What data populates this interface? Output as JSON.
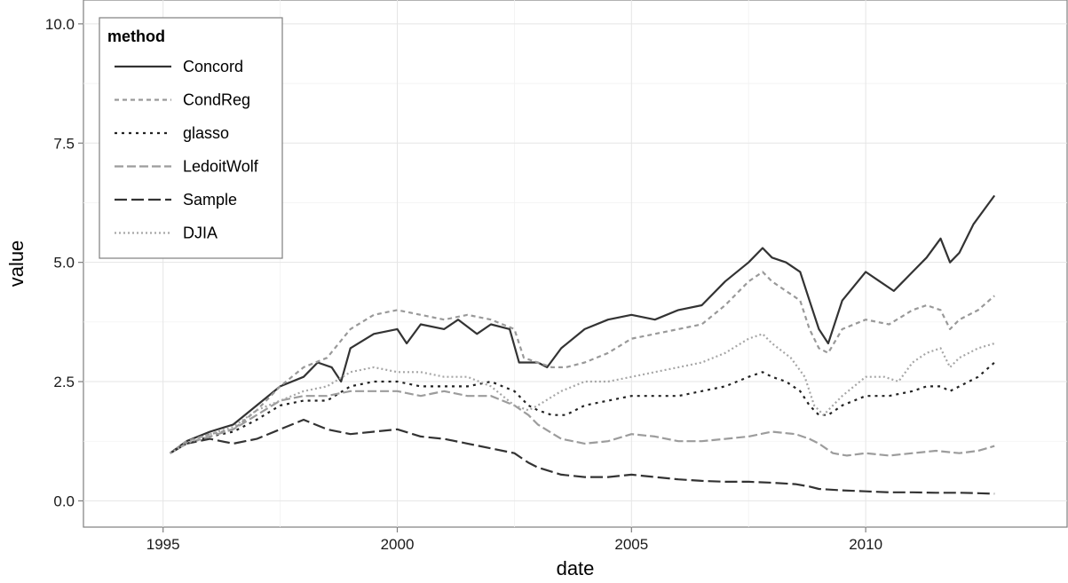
{
  "chart_data": {
    "type": "line",
    "xlabel": "date",
    "ylabel": "value",
    "xlim": [
      1993.3,
      2014.3
    ],
    "ylim": [
      -0.55,
      10.5
    ],
    "x_ticks": [
      1995,
      2000,
      2005,
      2010
    ],
    "x_tick_labels": [
      "1995",
      "2000",
      "2005",
      "2010"
    ],
    "y_ticks": [
      0.0,
      2.5,
      5.0,
      7.5,
      10.0
    ],
    "y_tick_labels": [
      "0.0",
      "2.5",
      "5.0",
      "7.5",
      "10.0"
    ],
    "grid": true,
    "legend": {
      "title": "method",
      "position": "top-left"
    },
    "series": [
      {
        "name": "Concord",
        "color": "#333333",
        "dash": "solid",
        "x": [
          1995.15,
          1995.5,
          1996.0,
          1996.5,
          1997.0,
          1997.5,
          1998.0,
          1998.3,
          1998.6,
          1998.8,
          1999.0,
          1999.5,
          2000.0,
          2000.2,
          2000.5,
          2001.0,
          2001.3,
          2001.7,
          2002.0,
          2002.4,
          2002.6,
          2002.8,
          2003.0,
          2003.2,
          2003.5,
          2004.0,
          2004.5,
          2005.0,
          2005.5,
          2006.0,
          2006.5,
          2007.0,
          2007.5,
          2007.8,
          2008.0,
          2008.3,
          2008.6,
          2008.8,
          2009.0,
          2009.2,
          2009.5,
          2010.0,
          2010.3,
          2010.6,
          2011.0,
          2011.3,
          2011.6,
          2011.8,
          2012.0,
          2012.3,
          2012.6,
          2012.75
        ],
        "y": [
          1.0,
          1.25,
          1.45,
          1.6,
          2.0,
          2.4,
          2.6,
          2.9,
          2.8,
          2.5,
          3.2,
          3.5,
          3.6,
          3.3,
          3.7,
          3.6,
          3.8,
          3.5,
          3.7,
          3.6,
          2.9,
          2.9,
          2.9,
          2.8,
          3.2,
          3.6,
          3.8,
          3.9,
          3.8,
          4.0,
          4.1,
          4.6,
          5.0,
          5.3,
          5.1,
          5.0,
          4.8,
          4.2,
          3.6,
          3.3,
          4.2,
          4.8,
          4.6,
          4.4,
          4.8,
          5.1,
          5.5,
          5.0,
          5.2,
          5.8,
          6.2,
          6.4
        ]
      },
      {
        "name": "CondReg",
        "color": "#999999",
        "dash": "5,4",
        "x": [
          1995.15,
          1995.5,
          1996.0,
          1996.5,
          1997.0,
          1997.5,
          1998.0,
          1998.5,
          1999.0,
          1999.5,
          2000.0,
          2000.5,
          2001.0,
          2001.5,
          2002.0,
          2002.5,
          2002.7,
          2003.0,
          2003.3,
          2003.6,
          2004.0,
          2004.5,
          2005.0,
          2005.5,
          2006.0,
          2006.5,
          2007.0,
          2007.5,
          2007.8,
          2008.0,
          2008.3,
          2008.6,
          2008.8,
          2009.0,
          2009.2,
          2009.5,
          2010.0,
          2010.5,
          2011.0,
          2011.3,
          2011.6,
          2011.8,
          2012.0,
          2012.4,
          2012.75
        ],
        "y": [
          1.0,
          1.25,
          1.4,
          1.5,
          1.9,
          2.4,
          2.8,
          3.0,
          3.6,
          3.9,
          4.0,
          3.9,
          3.8,
          3.9,
          3.8,
          3.6,
          3.0,
          2.9,
          2.8,
          2.8,
          2.9,
          3.1,
          3.4,
          3.5,
          3.6,
          3.7,
          4.1,
          4.6,
          4.8,
          4.6,
          4.4,
          4.2,
          3.6,
          3.2,
          3.1,
          3.6,
          3.8,
          3.7,
          4.0,
          4.1,
          4.0,
          3.6,
          3.8,
          4.0,
          4.3
        ]
      },
      {
        "name": "glasso",
        "color": "#222222",
        "dash": "3,5",
        "x": [
          1995.15,
          1995.5,
          1996.0,
          1996.5,
          1997.0,
          1997.5,
          1998.0,
          1998.5,
          1999.0,
          1999.5,
          2000.0,
          2000.5,
          2001.0,
          2001.5,
          2002.0,
          2002.5,
          2002.8,
          2003.0,
          2003.3,
          2003.6,
          2004.0,
          2004.5,
          2005.0,
          2005.5,
          2006.0,
          2006.5,
          2007.0,
          2007.5,
          2007.8,
          2008.0,
          2008.3,
          2008.6,
          2008.8,
          2009.0,
          2009.2,
          2009.5,
          2010.0,
          2010.5,
          2011.0,
          2011.3,
          2011.6,
          2011.8,
          2012.0,
          2012.4,
          2012.75
        ],
        "y": [
          1.0,
          1.2,
          1.35,
          1.45,
          1.7,
          2.0,
          2.1,
          2.1,
          2.4,
          2.5,
          2.5,
          2.4,
          2.4,
          2.4,
          2.5,
          2.3,
          2.0,
          1.9,
          1.8,
          1.8,
          2.0,
          2.1,
          2.2,
          2.2,
          2.2,
          2.3,
          2.4,
          2.6,
          2.7,
          2.6,
          2.5,
          2.3,
          2.0,
          1.8,
          1.8,
          2.0,
          2.2,
          2.2,
          2.3,
          2.4,
          2.4,
          2.3,
          2.4,
          2.6,
          2.9
        ]
      },
      {
        "name": "LedoitWolf",
        "color": "#9c9c9c",
        "dash": "10,4",
        "x": [
          1995.15,
          1995.5,
          1996.0,
          1996.5,
          1997.0,
          1997.5,
          1998.0,
          1998.5,
          1999.0,
          1999.5,
          2000.0,
          2000.5,
          2001.0,
          2001.5,
          2002.0,
          2002.5,
          2002.8,
          2003.0,
          2003.5,
          2004.0,
          2004.5,
          2005.0,
          2005.5,
          2006.0,
          2006.5,
          2007.0,
          2007.5,
          2008.0,
          2008.5,
          2008.8,
          2009.0,
          2009.3,
          2009.6,
          2010.0,
          2010.5,
          2011.0,
          2011.5,
          2012.0,
          2012.4,
          2012.75
        ],
        "y": [
          1.0,
          1.2,
          1.35,
          1.5,
          1.8,
          2.1,
          2.2,
          2.2,
          2.3,
          2.3,
          2.3,
          2.2,
          2.3,
          2.2,
          2.2,
          2.0,
          1.8,
          1.6,
          1.3,
          1.2,
          1.25,
          1.4,
          1.35,
          1.25,
          1.25,
          1.3,
          1.35,
          1.45,
          1.4,
          1.3,
          1.2,
          1.0,
          0.95,
          1.0,
          0.95,
          1.0,
          1.05,
          1.0,
          1.05,
          1.15
        ]
      },
      {
        "name": "Sample",
        "color": "#333333",
        "dash": "14,5",
        "x": [
          1995.15,
          1995.5,
          1996.0,
          1996.5,
          1997.0,
          1997.5,
          1998.0,
          1998.5,
          1999.0,
          1999.5,
          2000.0,
          2000.5,
          2001.0,
          2001.5,
          2002.0,
          2002.5,
          2002.8,
          2003.0,
          2003.5,
          2004.0,
          2004.5,
          2005.0,
          2005.5,
          2006.0,
          2006.5,
          2007.0,
          2007.5,
          2008.0,
          2008.5,
          2008.8,
          2009.0,
          2009.5,
          2010.0,
          2010.5,
          2011.0,
          2011.5,
          2012.0,
          2012.4,
          2012.75
        ],
        "y": [
          1.0,
          1.2,
          1.3,
          1.2,
          1.3,
          1.5,
          1.7,
          1.5,
          1.4,
          1.45,
          1.5,
          1.35,
          1.3,
          1.2,
          1.1,
          1.0,
          0.8,
          0.7,
          0.55,
          0.5,
          0.5,
          0.55,
          0.5,
          0.45,
          0.42,
          0.4,
          0.4,
          0.38,
          0.35,
          0.3,
          0.25,
          0.22,
          0.2,
          0.18,
          0.18,
          0.17,
          0.17,
          0.16,
          0.15
        ]
      },
      {
        "name": "DJIA",
        "color": "#a6a6a6",
        "dash": "2,3",
        "x": [
          1995.15,
          1995.5,
          1996.0,
          1996.5,
          1997.0,
          1997.5,
          1998.0,
          1998.5,
          1999.0,
          1999.5,
          2000.0,
          2000.5,
          2001.0,
          2001.5,
          2002.0,
          2002.5,
          2002.8,
          2003.0,
          2003.5,
          2004.0,
          2004.5,
          2005.0,
          2005.5,
          2006.0,
          2006.5,
          2007.0,
          2007.5,
          2007.8,
          2008.0,
          2008.4,
          2008.7,
          2008.9,
          2009.1,
          2009.5,
          2010.0,
          2010.4,
          2010.7,
          2011.0,
          2011.3,
          2011.6,
          2011.8,
          2012.0,
          2012.4,
          2012.75
        ],
        "y": [
          1.0,
          1.2,
          1.4,
          1.55,
          1.9,
          2.1,
          2.3,
          2.4,
          2.7,
          2.8,
          2.7,
          2.7,
          2.6,
          2.6,
          2.4,
          2.0,
          1.9,
          2.0,
          2.3,
          2.5,
          2.5,
          2.6,
          2.7,
          2.8,
          2.9,
          3.1,
          3.4,
          3.5,
          3.3,
          3.0,
          2.6,
          2.0,
          1.8,
          2.2,
          2.6,
          2.6,
          2.5,
          2.9,
          3.1,
          3.2,
          2.8,
          3.0,
          3.2,
          3.3
        ]
      }
    ]
  }
}
